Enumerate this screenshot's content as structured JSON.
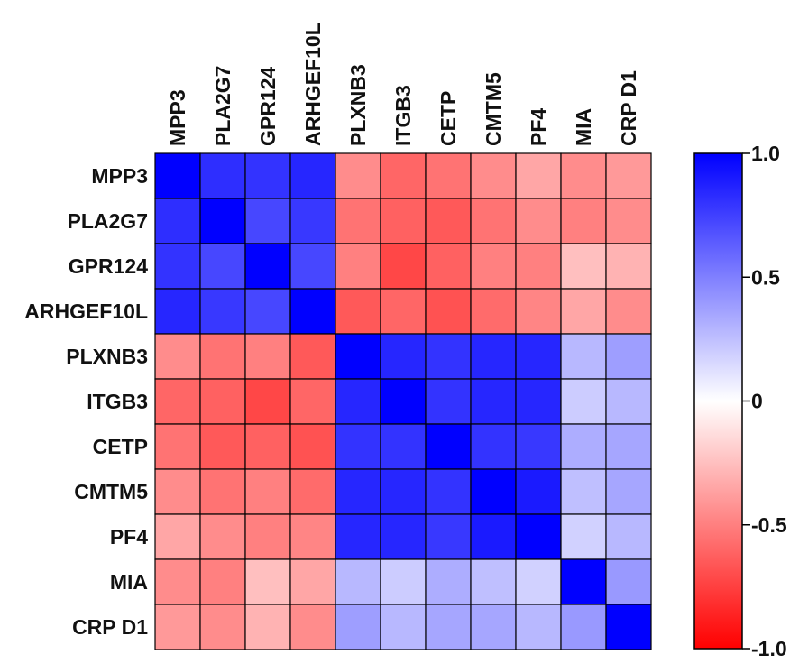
{
  "chart_data": {
    "type": "heatmap",
    "title": "",
    "labels": [
      "MPP3",
      "PLA2G7",
      "GPR124",
      "ARHGEF10L",
      "PLXNB3",
      "ITGB3",
      "CETP",
      "CMTM5",
      "PF4",
      "MIA",
      "CRP D1"
    ],
    "values": [
      [
        1.0,
        0.82,
        0.8,
        0.85,
        -0.45,
        -0.6,
        -0.55,
        -0.45,
        -0.35,
        -0.45,
        -0.4
      ],
      [
        0.82,
        1.0,
        0.72,
        0.78,
        -0.55,
        -0.62,
        -0.65,
        -0.55,
        -0.45,
        -0.5,
        -0.45
      ],
      [
        0.8,
        0.72,
        1.0,
        0.72,
        -0.5,
        -0.72,
        -0.62,
        -0.5,
        -0.5,
        -0.25,
        -0.3
      ],
      [
        0.85,
        0.78,
        0.72,
        1.0,
        -0.65,
        -0.6,
        -0.68,
        -0.58,
        -0.48,
        -0.35,
        -0.45
      ],
      [
        -0.45,
        -0.55,
        -0.5,
        -0.65,
        1.0,
        0.85,
        0.8,
        0.85,
        0.85,
        0.28,
        0.38
      ],
      [
        -0.6,
        -0.62,
        -0.72,
        -0.6,
        0.85,
        1.0,
        0.8,
        0.85,
        0.85,
        0.2,
        0.28
      ],
      [
        -0.55,
        -0.65,
        -0.62,
        -0.68,
        0.8,
        0.8,
        1.0,
        0.8,
        0.78,
        0.32,
        0.35
      ],
      [
        -0.45,
        -0.55,
        -0.5,
        -0.58,
        0.85,
        0.85,
        0.8,
        1.0,
        0.9,
        0.25,
        0.35
      ],
      [
        -0.35,
        -0.45,
        -0.5,
        -0.48,
        0.85,
        0.85,
        0.78,
        0.9,
        1.0,
        0.18,
        0.28
      ],
      [
        -0.45,
        -0.5,
        -0.25,
        -0.35,
        0.28,
        0.2,
        0.32,
        0.25,
        0.18,
        1.0,
        0.4
      ],
      [
        -0.4,
        -0.45,
        -0.3,
        -0.45,
        0.38,
        0.28,
        0.35,
        0.35,
        0.28,
        0.4,
        1.0
      ]
    ],
    "colorbar": {
      "range": [
        -1.0,
        1.0
      ],
      "ticks": [
        1.0,
        0.5,
        0,
        -0.5,
        -1.0
      ],
      "tick_labels": [
        "1.0",
        "0.5",
        "0",
        "-0.5",
        "-1.0"
      ],
      "colors": {
        "low": "#ff0000",
        "mid": "#ffffff",
        "high": "#0000ff"
      }
    },
    "grid": true,
    "legend": "right"
  }
}
